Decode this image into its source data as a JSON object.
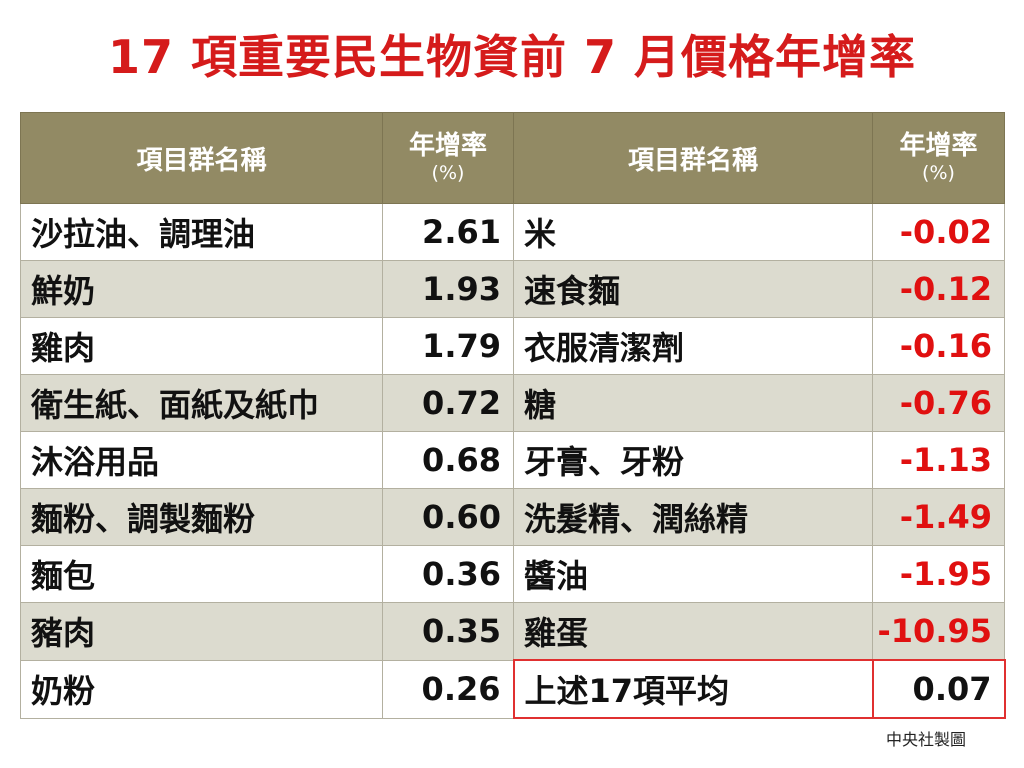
{
  "title": "17 項重要民生物資前 7 月價格年增率",
  "source": "中央社製圖",
  "header": {
    "name_label": "項目群名稱",
    "rate_label": "年增率",
    "unit_label": "(%)"
  },
  "left_rows": [
    {
      "name": "沙拉油、調理油",
      "value": "2.61"
    },
    {
      "name": "鮮奶",
      "value": "1.93"
    },
    {
      "name": "雞肉",
      "value": "1.79"
    },
    {
      "name": "衛生紙、面紙及紙巾",
      "value": "0.72"
    },
    {
      "name": "沐浴用品",
      "value": "0.68"
    },
    {
      "name": "麵粉、調製麵粉",
      "value": "0.60"
    },
    {
      "name": "麵包",
      "value": "0.36"
    },
    {
      "name": "豬肉",
      "value": "0.35"
    },
    {
      "name": "奶粉",
      "value": "0.26"
    }
  ],
  "right_rows": [
    {
      "name": "米",
      "value": "-0.02"
    },
    {
      "name": "速食麵",
      "value": "-0.12"
    },
    {
      "name": "衣服清潔劑",
      "value": "-0.16"
    },
    {
      "name": "糖",
      "value": "-0.76"
    },
    {
      "name": "牙膏、牙粉",
      "value": "-1.13"
    },
    {
      "name": "洗髮精、潤絲精",
      "value": "-1.49"
    },
    {
      "name": "醬油",
      "value": "-1.95"
    },
    {
      "name": "雞蛋",
      "value": "-10.95"
    },
    {
      "name": "上述17項平均",
      "value": "0.07"
    }
  ],
  "colors": {
    "title": "#d51b1b",
    "header_bg": "#928a64",
    "shaded_row": "#dcdbcf",
    "negative_value": "#e01010",
    "average_border": "#e03030"
  },
  "chart_data": {
    "type": "table",
    "title": "17 項重要民生物資前 7 月價格年增率",
    "columns": [
      "項目群名稱",
      "年增率 (%)"
    ],
    "rows": [
      [
        "沙拉油、調理油",
        2.61
      ],
      [
        "鮮奶",
        1.93
      ],
      [
        "雞肉",
        1.79
      ],
      [
        "衛生紙、面紙及紙巾",
        0.72
      ],
      [
        "沐浴用品",
        0.68
      ],
      [
        "麵粉、調製麵粉",
        0.6
      ],
      [
        "麵包",
        0.36
      ],
      [
        "豬肉",
        0.35
      ],
      [
        "奶粉",
        0.26
      ],
      [
        "米",
        -0.02
      ],
      [
        "速食麵",
        -0.12
      ],
      [
        "衣服清潔劑",
        -0.16
      ],
      [
        "糖",
        -0.76
      ],
      [
        "牙膏、牙粉",
        -1.13
      ],
      [
        "洗髮精、潤絲精",
        -1.49
      ],
      [
        "醬油",
        -1.95
      ],
      [
        "雞蛋",
        -10.95
      ],
      [
        "上述17項平均",
        0.07
      ]
    ]
  }
}
